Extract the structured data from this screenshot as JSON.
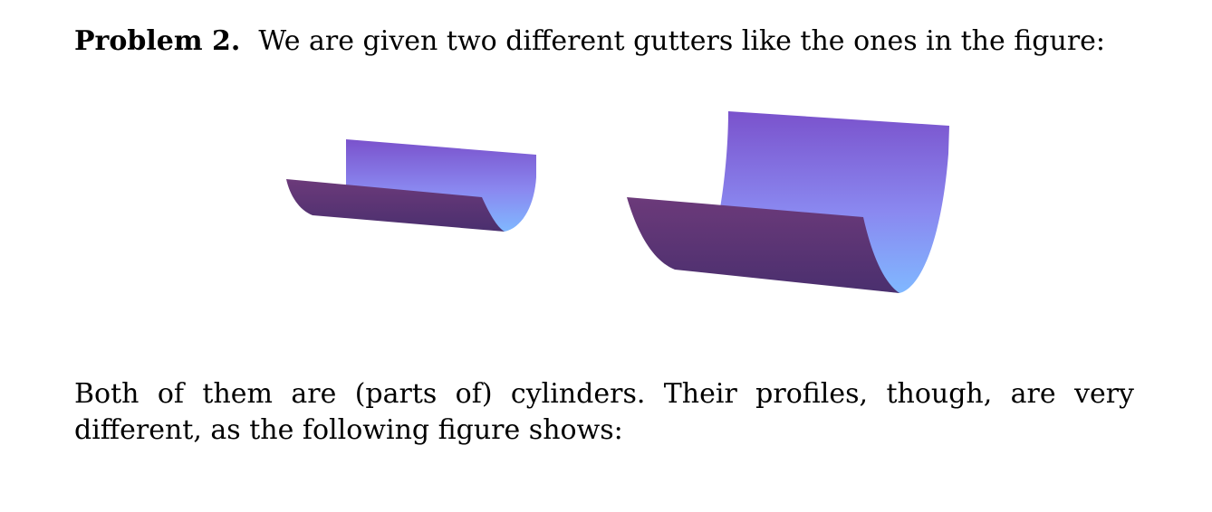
{
  "problem": {
    "label": "Problem 2.",
    "text": "We are given two different gutters like the ones in the figure:"
  },
  "figure": {
    "gutters": [
      {
        "name": "small-gutter"
      },
      {
        "name": "large-gutter"
      }
    ],
    "colors": {
      "inner_top": "#7a55d0",
      "inner_bottom": "#7fb0ff",
      "outer_top": "#6a3a78",
      "outer_bottom": "#4a3070"
    }
  },
  "paragraph": {
    "text": "Both of them are (parts of) cylinders. Their profiles, though, are very different, as the following figure shows:"
  }
}
